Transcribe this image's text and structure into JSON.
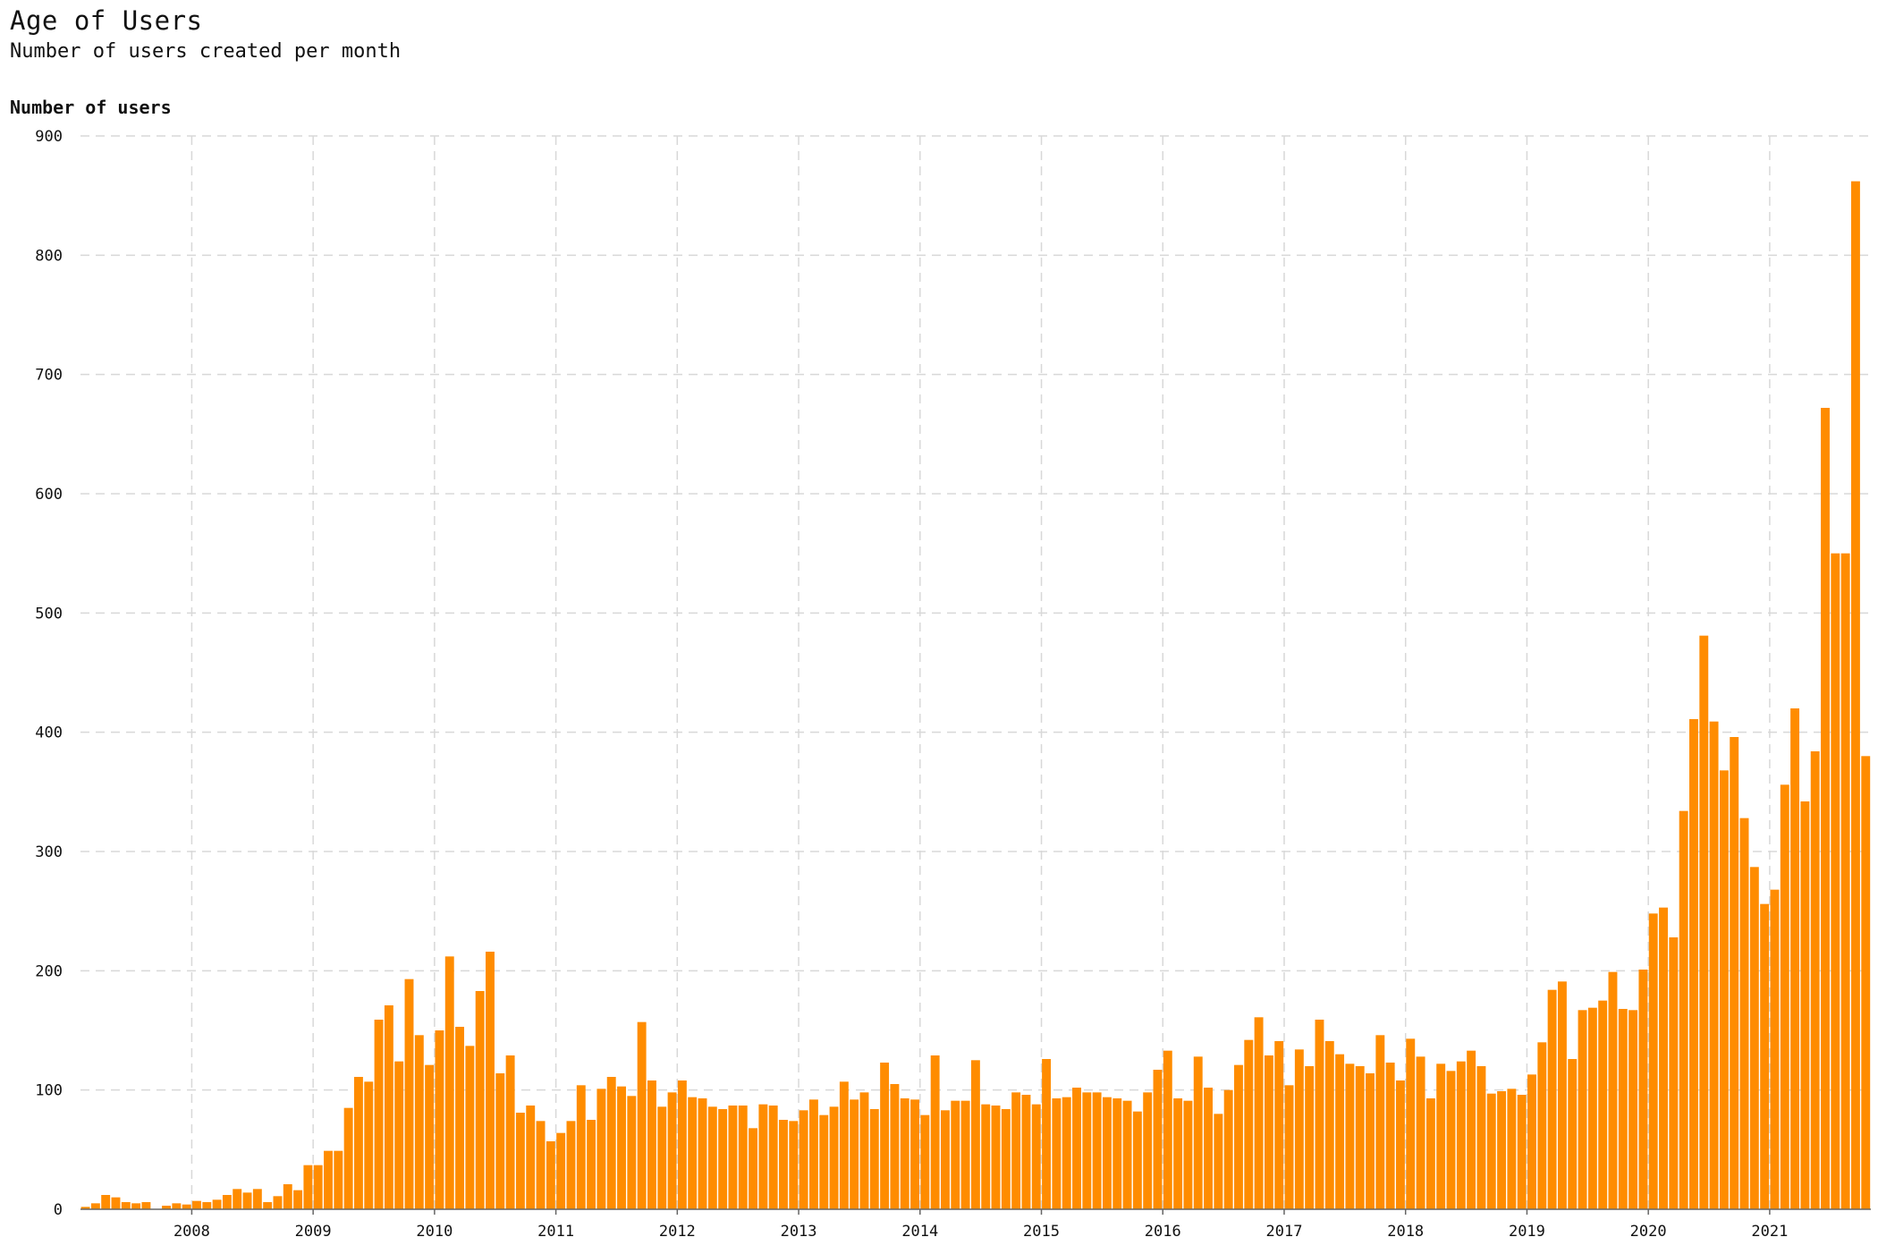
{
  "chart_data": {
    "type": "bar",
    "title": "Age of Users",
    "subtitle": "Number of users created per month",
    "ylabel": "Number of users",
    "xlabel": "",
    "ylim": [
      0,
      900
    ],
    "y_ticks": [
      0,
      100,
      200,
      300,
      400,
      500,
      600,
      700,
      800,
      900
    ],
    "x_ticks": [
      "2008",
      "2009",
      "2010",
      "2011",
      "2012",
      "2013",
      "2014",
      "2015",
      "2016",
      "2017",
      "2018",
      "2019",
      "2020",
      "2021"
    ],
    "grid": true,
    "start_month": "2007-02",
    "bar_color": "#ff8c00",
    "values": [
      2,
      5,
      12,
      10,
      6,
      5,
      6,
      0,
      3,
      5,
      4,
      7,
      6,
      8,
      12,
      17,
      14,
      17,
      6,
      11,
      21,
      16,
      37,
      37,
      49,
      49,
      85,
      111,
      107,
      159,
      171,
      124,
      193,
      146,
      121,
      150,
      212,
      153,
      137,
      183,
      216,
      114,
      129,
      81,
      87,
      74,
      57,
      64,
      74,
      104,
      75,
      101,
      111,
      103,
      95,
      157,
      108,
      86,
      98,
      108,
      94,
      93,
      86,
      84,
      87,
      87,
      68,
      88,
      87,
      75,
      74,
      83,
      92,
      79,
      86,
      107,
      92,
      98,
      84,
      123,
      105,
      93,
      92,
      79,
      129,
      83,
      91,
      91,
      125,
      88,
      87,
      84,
      98,
      96,
      88,
      126,
      93,
      94,
      102,
      98,
      98,
      94,
      93,
      91,
      82,
      98,
      117,
      133,
      93,
      91,
      128,
      102,
      80,
      100,
      121,
      142,
      161,
      129,
      141,
      104,
      134,
      120,
      159,
      141,
      130,
      122,
      120,
      114,
      146,
      123,
      108,
      143,
      128,
      93,
      122,
      116,
      124,
      133,
      120,
      97,
      99,
      101,
      96,
      113,
      140,
      184,
      191,
      126,
      167,
      169,
      175,
      199,
      168,
      167,
      201,
      248,
      253,
      228,
      334,
      411,
      481,
      409,
      368,
      396,
      328,
      287,
      256,
      268,
      356,
      420,
      342,
      384,
      672,
      550,
      550,
      862,
      380
    ]
  }
}
